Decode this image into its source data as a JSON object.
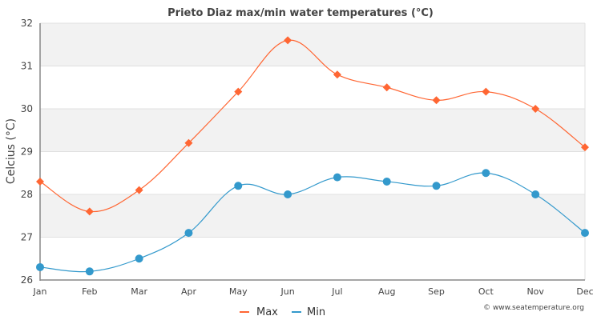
{
  "chart_data": {
    "type": "line",
    "title": "Prieto Diaz max/min water temperatures (°C)",
    "xlabel": "",
    "ylabel": "Celcius (°C)",
    "ylim": [
      26,
      32
    ],
    "yticks": [
      "26",
      "27",
      "28",
      "29",
      "30",
      "31",
      "32"
    ],
    "categories": [
      "Jan",
      "Feb",
      "Mar",
      "Apr",
      "May",
      "Jun",
      "Jul",
      "Aug",
      "Sep",
      "Oct",
      "Nov",
      "Dec"
    ],
    "grid": true,
    "legend_position": "bottom-center",
    "series": [
      {
        "name": "Max",
        "color": "#ff6633",
        "marker": "diamond",
        "values": [
          28.3,
          27.6,
          28.1,
          29.2,
          30.4,
          31.6,
          30.8,
          30.5,
          30.2,
          30.4,
          30.0,
          29.1
        ]
      },
      {
        "name": "Min",
        "color": "#3399cc",
        "marker": "circle",
        "values": [
          26.3,
          26.2,
          26.5,
          27.1,
          28.2,
          28.0,
          28.4,
          28.3,
          28.2,
          28.5,
          28.0,
          27.1
        ]
      }
    ],
    "credit": "© www.seatemperature.org"
  },
  "colors": {
    "band": "#f2f2f2",
    "grid": "#e0e0e0",
    "axis": "#888888"
  }
}
